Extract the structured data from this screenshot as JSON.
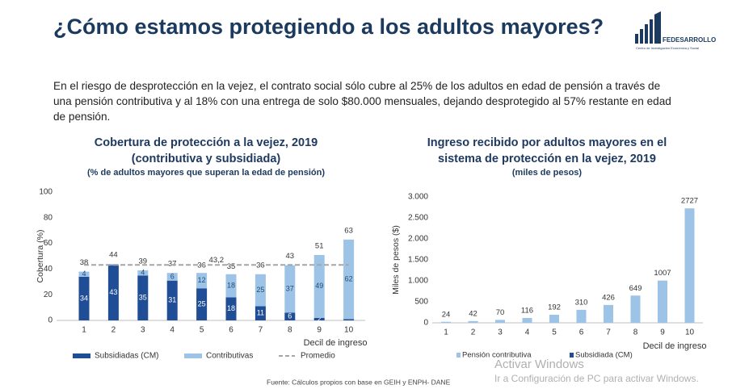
{
  "header": {
    "title": "¿Cómo estamos protegiendo a los adultos mayores?",
    "logo_name": "FEDESARROLLO",
    "logo_tagline": "Centro de Investigación Económica y Social"
  },
  "paragraph": "En el riesgo de desprotección en la vejez, el contrato social sólo cubre al 25% de los adultos en edad de pensión a través de una pensión contributiva y al 18% con una entrega de solo $80.000 mensuales, dejando desprotegido al 57% restante en edad de pensión.",
  "chart_data": [
    {
      "type": "stacked-bar",
      "title": [
        "Cobertura de protección a la vejez, 2019",
        "(contributiva y subsidiada)"
      ],
      "subtitle": "(% de adultos mayores que superan la edad de pensión)",
      "ylabel": "Cobertura (%)",
      "xlabel": "Decil de ingreso",
      "categories": [
        "1",
        "2",
        "3",
        "4",
        "5",
        "6",
        "7",
        "8",
        "9",
        "10"
      ],
      "series": [
        {
          "name": "Subsidiadas (CM)",
          "color": "#1f4e96",
          "values": [
            34,
            43,
            35,
            31,
            25,
            18,
            11,
            6,
            2,
            1
          ]
        },
        {
          "name": "Contributivas",
          "color": "#9dc3e6",
          "values": [
            4,
            1,
            4,
            6,
            12,
            18,
            25,
            37,
            49,
            62
          ]
        },
        {
          "name": "Promedio",
          "type": "line",
          "color": "#a6a6a6",
          "dashed": true,
          "values": [
            43.2,
            43.2,
            43.2,
            43.2,
            43.2,
            43.2,
            43.2,
            43.2,
            43.2,
            43.2
          ]
        }
      ],
      "totals": [
        38,
        44,
        39,
        37,
        36,
        35,
        36,
        43,
        51,
        63
      ],
      "annotation": {
        "value": 43.2,
        "label": "43,2"
      },
      "ylim": [
        0,
        100
      ],
      "yticks": [
        0,
        20,
        40,
        60,
        80,
        100
      ],
      "grid": false
    },
    {
      "type": "bar",
      "title": [
        "Ingreso recibido por adultos mayores en el",
        "sistema de protección en la vejez, 2019"
      ],
      "subtitle": "(miles de pesos)",
      "ylabel": "Miles de pesos ($)",
      "xlabel": "Decil de ingreso",
      "categories": [
        "1",
        "2",
        "3",
        "4",
        "5",
        "6",
        "7",
        "8",
        "9",
        "10"
      ],
      "series": [
        {
          "name": "Pensión contributiva",
          "color": "#9dc3e6",
          "values": [
            24,
            42,
            70,
            116,
            192,
            310,
            426,
            649,
            1007,
            2727
          ]
        },
        {
          "name": "Subsidiada (CM)",
          "color": "#1f4e96",
          "values": [
            null,
            null,
            null,
            null,
            null,
            null,
            null,
            null,
            null,
            null
          ]
        }
      ],
      "ylim": [
        0,
        3000
      ],
      "yticks": [
        0,
        500,
        {
          "value": 1000,
          "label": "1.000"
        },
        {
          "value": 1500,
          "label": "1.500"
        },
        {
          "value": 2000,
          "label": "2.000"
        },
        {
          "value": 2500,
          "label": "2.500"
        },
        {
          "value": 3000,
          "label": "3.000"
        }
      ],
      "grid": false
    }
  ],
  "footer": {
    "source": "Fuente: Cálculos propios con base en GEIH y ENPH- DANE",
    "watermark_title": "Activar Windows",
    "watermark_text": "Ir a Configuración de PC para activar Windows."
  }
}
